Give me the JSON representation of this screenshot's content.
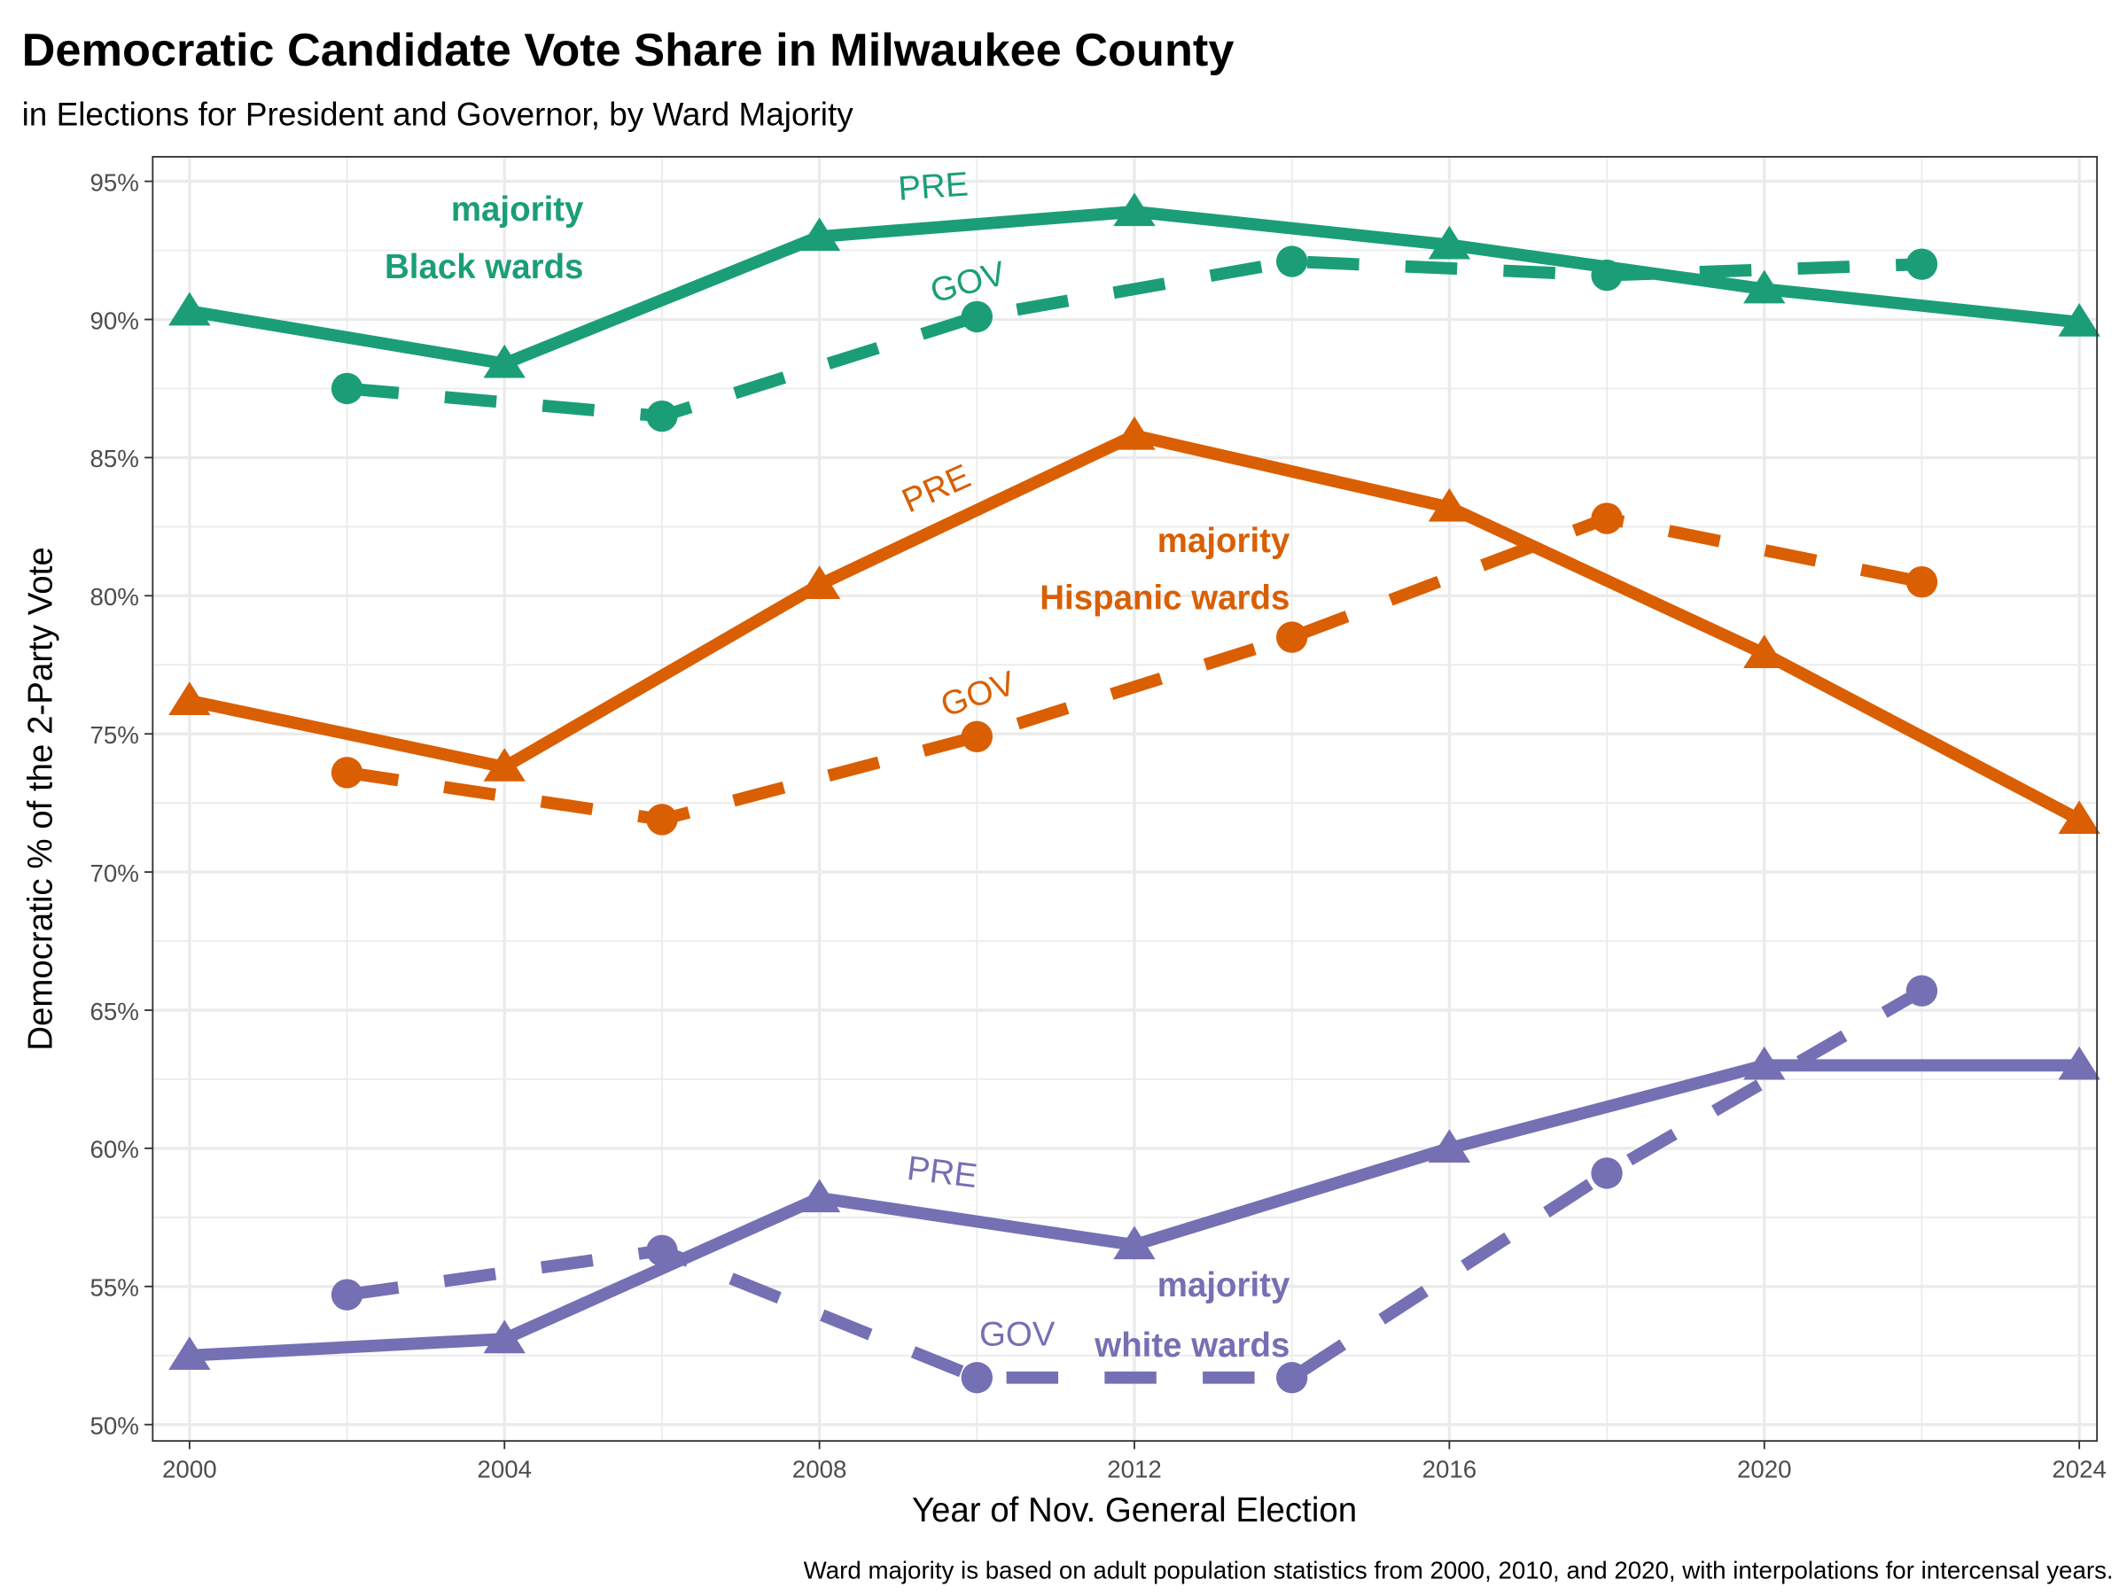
{
  "chart_data": {
    "type": "line",
    "title": "Democratic Candidate Vote Share in Milwaukee County",
    "subtitle": "in Elections for President and Governor, by Ward Majority",
    "xlabel": "Year of Nov. General Election",
    "ylabel": "Democratic % of the 2-Party Vote",
    "caption": "Ward majority is based on adult population statistics from 2000, 2010, and 2020, with interpolations for intercensal years.",
    "xlim": [
      1999.5,
      2024.5
    ],
    "ylim": [
      49.5,
      95.6
    ],
    "x_ticks": [
      2000,
      2004,
      2008,
      2012,
      2016,
      2020,
      2024
    ],
    "x_tick_labels": [
      "2000",
      "2004",
      "2008",
      "2012",
      "2016",
      "2020",
      "2024"
    ],
    "y_ticks": [
      50,
      55,
      60,
      65,
      70,
      75,
      80,
      85,
      90,
      95
    ],
    "y_tick_labels": [
      "50%",
      "55%",
      "60%",
      "65%",
      "70%",
      "75%",
      "80%",
      "85%",
      "90%",
      "95%"
    ],
    "grid": true,
    "series": [
      {
        "name": "Black wards PRE",
        "group": "black",
        "kind": "PRE",
        "color": "#1B9E77",
        "x": [
          2000,
          2004,
          2008,
          2012,
          2016,
          2020,
          2024
        ],
        "values": [
          90.3,
          88.4,
          93.0,
          93.9,
          92.7,
          91.1,
          89.9
        ]
      },
      {
        "name": "Black wards GOV",
        "group": "black",
        "kind": "GOV",
        "color": "#1B9E77",
        "x": [
          2002,
          2006,
          2010,
          2014,
          2018,
          2022
        ],
        "values": [
          87.5,
          86.5,
          90.1,
          92.1,
          91.6,
          92.0
        ]
      },
      {
        "name": "Hispanic wards PRE",
        "group": "hispanic",
        "kind": "PRE",
        "color": "#D95F02",
        "x": [
          2000,
          2004,
          2008,
          2012,
          2016,
          2020,
          2024
        ],
        "values": [
          76.2,
          73.8,
          80.4,
          85.8,
          83.2,
          77.9,
          71.9
        ]
      },
      {
        "name": "Hispanic wards GOV",
        "group": "hispanic",
        "kind": "GOV",
        "color": "#D95F02",
        "x": [
          2002,
          2006,
          2010,
          2014,
          2018,
          2022
        ],
        "values": [
          73.6,
          71.9,
          74.9,
          78.5,
          82.8,
          80.5
        ]
      },
      {
        "name": "white wards PRE",
        "group": "white",
        "kind": "PRE",
        "color": "#7570B3",
        "x": [
          2000,
          2004,
          2008,
          2012,
          2016,
          2020,
          2024
        ],
        "values": [
          52.5,
          53.1,
          58.2,
          56.5,
          60.0,
          63.0,
          63.0
        ]
      },
      {
        "name": "white wards GOV",
        "group": "white",
        "kind": "GOV",
        "color": "#7570B3",
        "x": [
          2002,
          2006,
          2010,
          2014,
          2018,
          2022
        ],
        "values": [
          54.7,
          56.3,
          51.7,
          51.7,
          59.1,
          65.7
        ]
      }
    ],
    "annotations": {
      "black": {
        "line1": "majority",
        "line2": "Black wards",
        "pre": "PRE",
        "gov": "GOV"
      },
      "hispanic": {
        "line1": "majority",
        "line2": "Hispanic wards",
        "pre": "PRE",
        "gov": "GOV"
      },
      "white": {
        "line1": "majority",
        "line2": "white wards",
        "pre": "PRE",
        "gov": "GOV"
      }
    }
  }
}
